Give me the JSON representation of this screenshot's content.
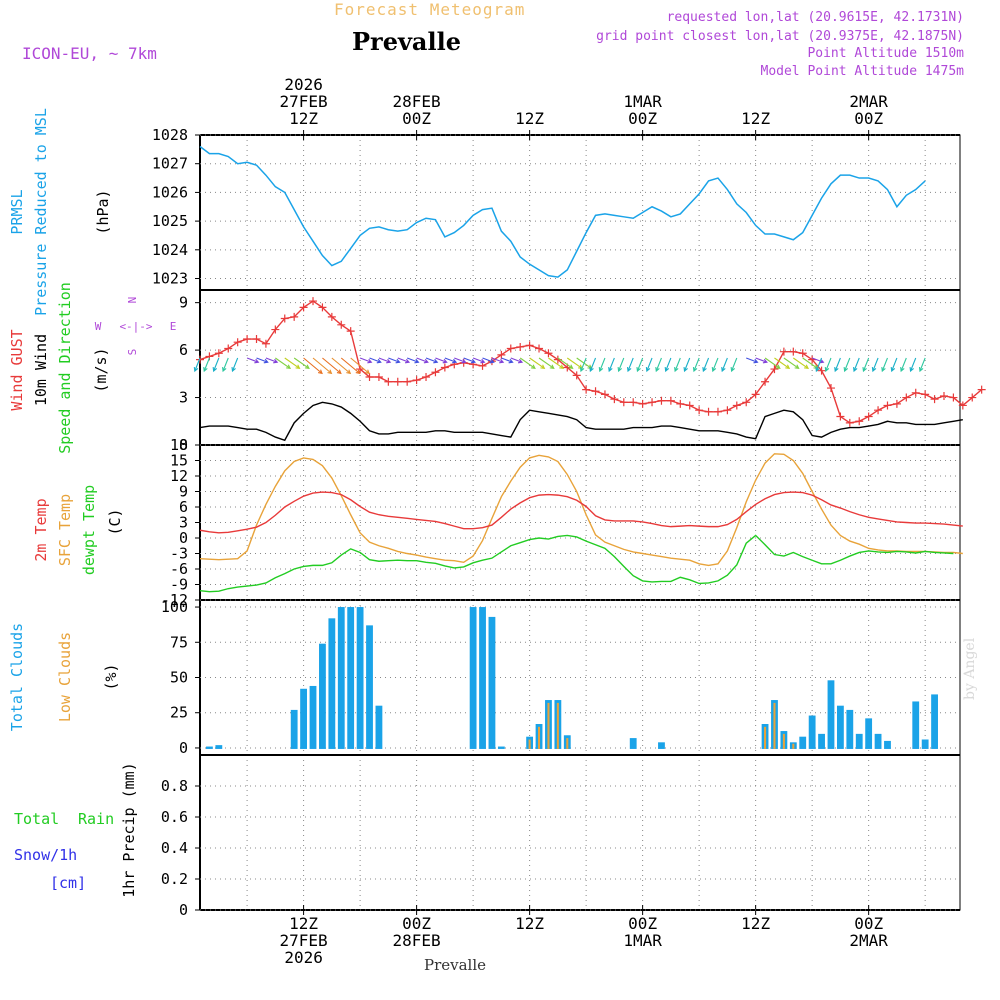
{
  "header": {
    "title": "Forecast Meteogram",
    "location": "Prevalle",
    "model": "ICON-EU, ~ 7km",
    "requested": "requested lon,lat (20.9615E, 42.1731N)",
    "gridpoint": "grid point closest lon,lat (20.9375E, 42.1875N)",
    "point_alt": "Point Altitude 1510m",
    "model_alt": "Model Point Altitude 1475m",
    "credit": "by Angel",
    "footer": "Prevalle"
  },
  "time_axis": {
    "top": [
      {
        "t": 12,
        "lines": [
          "2026",
          "27FEB",
          "12Z"
        ]
      },
      {
        "t": 24,
        "lines": [
          "28FEB",
          "00Z"
        ]
      },
      {
        "t": 36,
        "lines": [
          "12Z"
        ]
      },
      {
        "t": 48,
        "lines": [
          "1MAR",
          "00Z"
        ]
      },
      {
        "t": 60,
        "lines": [
          "12Z"
        ]
      },
      {
        "t": 72,
        "lines": [
          "2MAR",
          "00Z"
        ]
      }
    ],
    "bottom": [
      {
        "t": 12,
        "lines": [
          "12Z",
          "27FEB",
          "2026"
        ]
      },
      {
        "t": 24,
        "lines": [
          "00Z",
          "28FEB"
        ]
      },
      {
        "t": 36,
        "lines": [
          "12Z"
        ]
      },
      {
        "t": 48,
        "lines": [
          "00Z",
          "1MAR"
        ]
      },
      {
        "t": 60,
        "lines": [
          "12Z"
        ]
      },
      {
        "t": 72,
        "lines": [
          "00Z",
          "2MAR"
        ]
      }
    ]
  },
  "colors": {
    "cyan": "#1aa3e8",
    "red": "#e83a3a",
    "green": "#22cc22",
    "orange": "#e8a33a",
    "purple": "#b048d8",
    "blue": "#3030e8",
    "black": "#000000",
    "grid": "#888888"
  },
  "chart_data": [
    {
      "type": "line",
      "title": "PRMSL Pressure Reduced to MSL",
      "ylabel": "(hPa)",
      "ylim": [
        1022.6,
        1028
      ],
      "yticks": [
        1023,
        1024,
        1025,
        1026,
        1027,
        1028
      ],
      "series": [
        {
          "name": "PRMSL",
          "color": "#1aa3e8",
          "values": [
            1027.6,
            1027.35,
            1027.35,
            1027.25,
            1027.0,
            1027.05,
            1026.95,
            1026.6,
            1026.2,
            1026.0,
            1025.4,
            1024.8,
            1024.3,
            1023.8,
            1023.45,
            1023.6,
            1024.05,
            1024.5,
            1024.75,
            1024.8,
            1024.7,
            1024.65,
            1024.7,
            1024.95,
            1025.1,
            1025.05,
            1024.45,
            1024.6,
            1024.85,
            1025.2,
            1025.4,
            1025.45,
            1024.65,
            1024.3,
            1023.75,
            1023.5,
            1023.3,
            1023.1,
            1023.05,
            1023.3,
            1023.95,
            1024.6,
            1025.2,
            1025.25,
            1025.2,
            1025.15,
            1025.1,
            1025.3,
            1025.5,
            1025.35,
            1025.15,
            1025.25,
            1025.6,
            1025.95,
            1026.4,
            1026.5,
            1026.1,
            1025.6,
            1025.3,
            1024.85,
            1024.55,
            1024.55,
            1024.45,
            1024.35,
            1024.6,
            1025.2,
            1025.8,
            1026.3,
            1026.6,
            1026.6,
            1026.5,
            1026.5,
            1026.4,
            1026.1,
            1025.5,
            1025.9,
            1026.1,
            1026.4
          ]
        }
      ]
    },
    {
      "type": "line",
      "title": "Wind GUST / 10m Wind Speed and Direction",
      "ylabel": "(m/s)",
      "ylim": [
        0,
        9.8
      ],
      "yticks": [
        0,
        3,
        6,
        9
      ],
      "compass": {
        "n": "N",
        "s": "S",
        "w": "W",
        "e": "E",
        "glyph": "<-|->"
      },
      "series": [
        {
          "name": "Wind GUST",
          "color": "#e83a3a",
          "values": [
            5.4,
            5.6,
            5.8,
            6.1,
            6.5,
            6.7,
            6.7,
            6.4,
            7.3,
            8.0,
            8.1,
            8.7,
            9.1,
            8.7,
            8.1,
            7.6,
            7.2,
            4.8,
            4.3,
            4.3,
            4.0,
            4.0,
            4.0,
            4.1,
            4.3,
            4.6,
            4.9,
            5.1,
            5.2,
            5.1,
            5.0,
            5.3,
            5.7,
            6.1,
            6.2,
            6.3,
            6.1,
            5.8,
            5.4,
            4.9,
            4.4,
            3.5,
            3.4,
            3.2,
            2.9,
            2.7,
            2.7,
            2.6,
            2.7,
            2.8,
            2.8,
            2.6,
            2.5,
            2.2,
            2.1,
            2.1,
            2.2,
            2.5,
            2.7,
            3.2,
            4.0,
            4.8,
            5.9,
            5.9,
            5.8,
            5.4,
            4.7,
            3.6,
            1.8,
            1.4,
            1.5,
            1.8,
            2.2,
            2.5,
            2.6,
            3.0,
            3.3,
            3.2,
            2.9,
            3.1,
            3.0,
            2.5,
            3.0,
            3.5
          ]
        },
        {
          "name": "10m Wind",
          "color": "#000000",
          "values": [
            1.1,
            1.2,
            1.2,
            1.2,
            1.1,
            1.0,
            1.0,
            0.8,
            0.5,
            0.3,
            1.4,
            2.0,
            2.5,
            2.7,
            2.6,
            2.4,
            2.0,
            1.5,
            0.9,
            0.7,
            0.7,
            0.8,
            0.8,
            0.8,
            0.8,
            0.9,
            0.9,
            0.8,
            0.8,
            0.8,
            0.8,
            0.7,
            0.6,
            0.5,
            1.6,
            2.2,
            2.1,
            2.0,
            1.9,
            1.8,
            1.6,
            1.1,
            1.0,
            1.0,
            1.0,
            1.0,
            1.1,
            1.1,
            1.1,
            1.2,
            1.2,
            1.1,
            1.0,
            0.9,
            0.9,
            0.9,
            0.8,
            0.7,
            0.5,
            0.4,
            1.8,
            2.0,
            2.2,
            2.1,
            1.6,
            0.6,
            0.5,
            0.8,
            1.0,
            1.1,
            1.1,
            1.2,
            1.3,
            1.5,
            1.4,
            1.4,
            1.3,
            1.3,
            1.3,
            1.4,
            1.5,
            1.6
          ]
        },
        {
          "name": "direction-arrows",
          "color": "#22cc22",
          "values": [
            1,
            1,
            1,
            1,
            1,
            2,
            2,
            2,
            3,
            3,
            3,
            4,
            4,
            4,
            4,
            4,
            4,
            2,
            2,
            2,
            2,
            2,
            2,
            2,
            2,
            2,
            2,
            2,
            2,
            2,
            2,
            2,
            2,
            2,
            3,
            3,
            3,
            3,
            3,
            3,
            3,
            1,
            1,
            1,
            1,
            1,
            1,
            1,
            1,
            1,
            1,
            1,
            1,
            1,
            1,
            1,
            1,
            1,
            2,
            2,
            3,
            3,
            3,
            3,
            3,
            2,
            1,
            1,
            1,
            1,
            1,
            1,
            1,
            1,
            1,
            1,
            1,
            1
          ]
        }
      ]
    },
    {
      "type": "line",
      "title": "2m Temp / SFC Temp / dewpt Temp",
      "ylabel": "(C)",
      "ylim": [
        -12,
        18
      ],
      "yticks": [
        -12,
        -9,
        -6,
        -3,
        0,
        3,
        6,
        9,
        12,
        15,
        18
      ],
      "series": [
        {
          "name": "2m Temp",
          "color": "#e83a3a",
          "values": [
            1.5,
            1.2,
            1.0,
            1.1,
            1.4,
            1.7,
            2.1,
            3.0,
            4.4,
            6.0,
            7.1,
            8.1,
            8.7,
            8.9,
            8.8,
            8.4,
            7.4,
            6.1,
            5.0,
            4.5,
            4.2,
            4.0,
            3.8,
            3.6,
            3.4,
            3.2,
            2.8,
            2.3,
            1.8,
            1.8,
            2.0,
            2.5,
            4.0,
            5.6,
            6.8,
            7.8,
            8.3,
            8.4,
            8.3,
            8.0,
            7.3,
            6.1,
            4.3,
            3.5,
            3.3,
            3.3,
            3.3,
            3.1,
            2.8,
            2.4,
            2.2,
            2.3,
            2.4,
            2.3,
            2.2,
            2.2,
            2.6,
            3.6,
            5.1,
            6.5,
            7.6,
            8.4,
            8.8,
            8.9,
            8.8,
            8.3,
            7.4,
            6.4,
            5.8,
            5.1,
            4.5,
            4.0,
            3.7,
            3.4,
            3.1,
            3.0,
            2.9,
            2.9,
            2.8,
            2.7,
            2.5,
            2.3
          ]
        },
        {
          "name": "SFC Temp",
          "color": "#e8a33a",
          "values": [
            -4.0,
            -4.1,
            -4.2,
            -4.1,
            -4.0,
            -2.5,
            2.5,
            6.5,
            10.0,
            13.0,
            14.8,
            15.5,
            15.2,
            14.0,
            11.6,
            8.2,
            4.5,
            1.0,
            -0.8,
            -1.5,
            -2.0,
            -2.6,
            -3.0,
            -3.3,
            -3.7,
            -4.0,
            -4.3,
            -4.4,
            -4.7,
            -3.5,
            -0.5,
            3.8,
            8.0,
            11.0,
            13.7,
            15.5,
            16.0,
            15.7,
            14.8,
            12.3,
            9.0,
            4.5,
            0.6,
            -0.8,
            -1.5,
            -2.2,
            -2.7,
            -3.0,
            -3.3,
            -3.6,
            -3.9,
            -4.1,
            -4.3,
            -5.0,
            -5.3,
            -5.0,
            -2.5,
            2.0,
            7.0,
            11.2,
            14.5,
            16.3,
            16.2,
            15.0,
            12.5,
            9.0,
            5.6,
            2.5,
            0.5,
            -0.6,
            -1.2,
            -2.0,
            -2.3,
            -2.5,
            -2.5,
            -2.6,
            -2.6,
            -2.6,
            -2.7,
            -2.8,
            -2.8,
            -3.0
          ]
        },
        {
          "name": "dewpt Temp",
          "color": "#22cc22",
          "values": [
            -10.2,
            -10.4,
            -10.3,
            -9.8,
            -9.5,
            -9.3,
            -9.1,
            -8.7,
            -7.7,
            -6.9,
            -6.0,
            -5.5,
            -5.3,
            -5.3,
            -4.8,
            -3.3,
            -2.1,
            -2.8,
            -4.2,
            -4.5,
            -4.4,
            -4.3,
            -4.4,
            -4.4,
            -4.7,
            -4.9,
            -5.4,
            -5.8,
            -5.6,
            -4.8,
            -4.3,
            -3.9,
            -2.7,
            -1.5,
            -0.9,
            -0.3,
            0.0,
            -0.2,
            0.3,
            0.5,
            0.2,
            -0.6,
            -1.3,
            -2.0,
            -3.6,
            -5.5,
            -7.3,
            -8.3,
            -8.5,
            -8.4,
            -8.4,
            -7.6,
            -8.1,
            -8.8,
            -8.7,
            -8.3,
            -7.2,
            -5.2,
            -1.0,
            0.5,
            -1.3,
            -3.2,
            -3.5,
            -2.8,
            -3.6,
            -4.3,
            -5.0,
            -5.0,
            -4.3,
            -3.5,
            -2.8,
            -2.5,
            -2.7,
            -2.8,
            -2.6,
            -2.7,
            -2.9,
            -2.6,
            -2.8,
            -2.9,
            -3.0
          ]
        }
      ]
    },
    {
      "type": "bar",
      "title": "Total Clouds / Low Clouds",
      "ylabel": "(%)",
      "ylim": [
        -5,
        105
      ],
      "yticks": [
        0,
        25,
        50,
        75,
        100
      ],
      "series": [
        {
          "name": "Total Clouds",
          "color": "#1aa3e8",
          "values": [
            6,
            1,
            2,
            0,
            0,
            0,
            0,
            0,
            0,
            0,
            27,
            42,
            44,
            74,
            92,
            100,
            100,
            100,
            87,
            30,
            0,
            0,
            0,
            0,
            0,
            0,
            0,
            0,
            0,
            100,
            100,
            93,
            1,
            0,
            0,
            8,
            17,
            34,
            34,
            9,
            0,
            0,
            0,
            0,
            0,
            0,
            7,
            0,
            0,
            4,
            0,
            0,
            0,
            0,
            0,
            0,
            0,
            0,
            0,
            0,
            17,
            34,
            12,
            4,
            8,
            23,
            10,
            48,
            30,
            27,
            10,
            21,
            10,
            5,
            0,
            0,
            33,
            6,
            38
          ]
        },
        {
          "name": "Low Clouds",
          "color": "#e8a33a",
          "values": [
            0,
            0,
            0,
            0,
            0,
            0,
            0,
            0,
            0,
            0,
            0,
            0,
            0,
            0,
            0,
            0,
            0,
            0,
            0,
            0,
            0,
            0,
            0,
            0,
            0,
            0,
            0,
            0,
            0,
            0,
            0,
            0,
            0,
            0,
            0,
            6,
            15,
            32,
            32,
            7,
            0,
            0,
            0,
            0,
            0,
            0,
            0,
            0,
            0,
            0,
            0,
            0,
            0,
            0,
            0,
            0,
            0,
            0,
            0,
            0,
            15,
            32,
            10,
            3,
            0,
            0,
            0,
            0,
            0,
            0,
            0,
            0,
            0,
            0,
            0,
            0,
            0,
            0,
            0
          ]
        }
      ]
    },
    {
      "type": "bar",
      "title": "Total Rain / Snow/1h [cm]",
      "ylabel": "1hr Precip (mm)",
      "ylim": [
        0,
        1.0
      ],
      "yticks": [
        0,
        0.2,
        0.4,
        0.6,
        0.8
      ],
      "series": [
        {
          "name": "Total Rain",
          "color": "#22cc22",
          "values": []
        },
        {
          "name": "Snow/1h",
          "color": "#3030e8",
          "values": []
        }
      ]
    }
  ],
  "labels": {
    "p0": [
      "PRMSL",
      "Pressure Reduced to MSL",
      "(hPa)"
    ],
    "p1": [
      "Wind GUST",
      "10m Wind",
      "Speed and Direction",
      "(m/s)"
    ],
    "p2": [
      "2m Temp",
      "SFC Temp",
      "dewpt Temp",
      "(C)"
    ],
    "p3": [
      "Total Clouds",
      "Low Clouds",
      "(%)"
    ],
    "p4": [
      "Total",
      "Rain",
      "Snow/1h",
      "[cm]",
      "1hr Precip (mm)"
    ]
  }
}
